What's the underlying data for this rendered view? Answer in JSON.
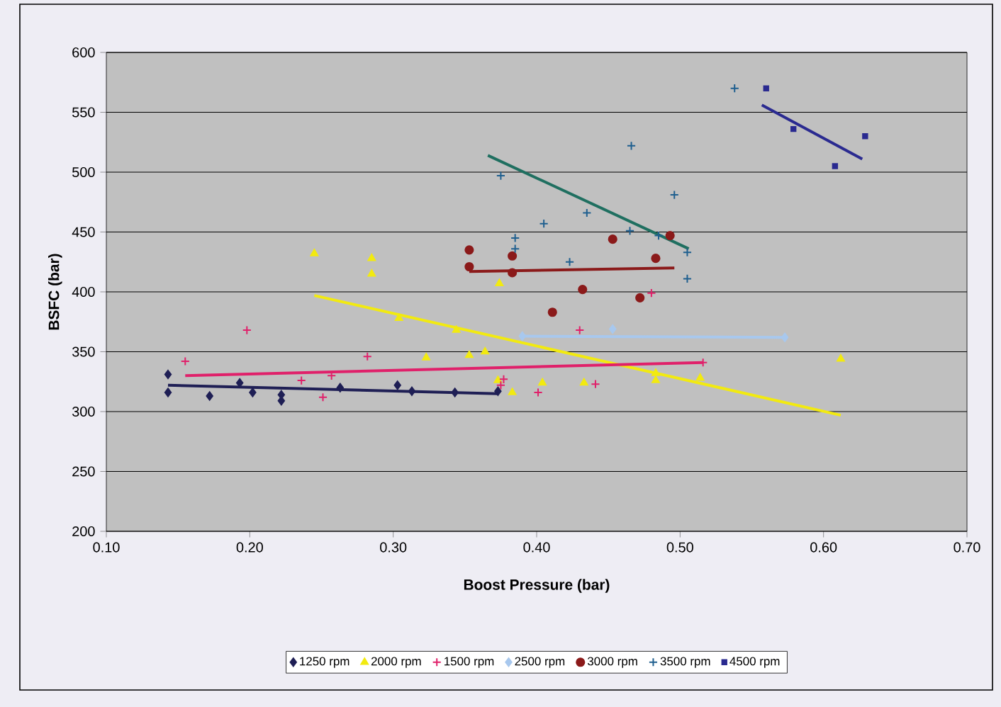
{
  "chart_data": {
    "type": "scatter",
    "xlabel": "Boost Pressure (bar)",
    "ylabel": "BSFC (bar)",
    "xlim": [
      0.1,
      0.7
    ],
    "ylim": [
      200,
      600
    ],
    "xticks": [
      {
        "value": 0.1,
        "label": "0.10"
      },
      {
        "value": 0.2,
        "label": "0.20"
      },
      {
        "value": 0.3,
        "label": "0.30"
      },
      {
        "value": 0.4,
        "label": "0.40"
      },
      {
        "value": 0.5,
        "label": "0.50"
      },
      {
        "value": 0.6,
        "label": "0.60"
      },
      {
        "value": 0.7,
        "label": "0.70"
      }
    ],
    "yticks": [
      200,
      250,
      300,
      350,
      400,
      450,
      500,
      550,
      600
    ],
    "grid": "y",
    "legend": "bottom",
    "series": [
      {
        "name": "1250 rpm",
        "color": "#1f1f55",
        "marker": "diamond",
        "x": [
          0.143,
          0.143,
          0.172,
          0.193,
          0.202,
          0.222,
          0.222,
          0.263,
          0.303,
          0.313,
          0.343,
          0.373
        ],
        "values": [
          331,
          316,
          313,
          324,
          316,
          314,
          309,
          320,
          322,
          317,
          316,
          317
        ]
      },
      {
        "name": "2000 rpm",
        "color": "#f2ea10",
        "marker": "triangle",
        "x": [
          0.245,
          0.285,
          0.285,
          0.304,
          0.323,
          0.344,
          0.353,
          0.364,
          0.373,
          0.374,
          0.383,
          0.404,
          0.433,
          0.483,
          0.483,
          0.514,
          0.612
        ],
        "values": [
          432,
          428,
          415,
          378,
          345,
          368,
          347,
          350,
          326,
          407,
          316,
          324,
          324,
          332,
          326,
          328,
          344
        ]
      },
      {
        "name": "1500 rpm",
        "color": "#e0206a",
        "marker": "cross",
        "x": [
          0.155,
          0.198,
          0.236,
          0.251,
          0.257,
          0.282,
          0.375,
          0.377,
          0.401,
          0.43,
          0.441,
          0.48,
          0.516
        ],
        "values": [
          342,
          368,
          326,
          312,
          330,
          346,
          322,
          327,
          316,
          368,
          323,
          399,
          341
        ]
      },
      {
        "name": "2500 rpm",
        "color": "#a8c8ee",
        "marker": "diamond",
        "x": [
          0.39,
          0.453,
          0.573
        ],
        "values": [
          363,
          369,
          362
        ]
      },
      {
        "name": "3000 rpm",
        "color": "#8b1a1a",
        "marker": "circle",
        "x": [
          0.353,
          0.353,
          0.383,
          0.383,
          0.411,
          0.432,
          0.453,
          0.472,
          0.483,
          0.493
        ],
        "values": [
          435,
          421,
          430,
          416,
          383,
          402,
          444,
          395,
          428,
          447
        ]
      },
      {
        "name": "3500 rpm",
        "color": "#1f5f8f",
        "marker": "cross",
        "x": [
          0.375,
          0.385,
          0.385,
          0.405,
          0.423,
          0.435,
          0.465,
          0.466,
          0.485,
          0.496,
          0.505,
          0.505,
          0.538
        ],
        "values": [
          497,
          445,
          436,
          457,
          425,
          466,
          451,
          522,
          447,
          481,
          433,
          411,
          570
        ]
      },
      {
        "name": "4500 rpm",
        "color": "#2a2a90",
        "marker": "square",
        "x": [
          0.56,
          0.579,
          0.608,
          0.629
        ],
        "values": [
          570,
          536,
          505,
          530
        ]
      },
      {
        "type": "line",
        "color": "#1f1f55",
        "x": [
          0.143,
          0.373
        ],
        "values": [
          322,
          315
        ]
      },
      {
        "type": "line",
        "color": "#f2ea10",
        "x": [
          0.245,
          0.612
        ],
        "values": [
          397,
          297
        ]
      },
      {
        "type": "line",
        "color": "#e0206a",
        "x": [
          0.155,
          0.516
        ],
        "values": [
          330,
          341
        ]
      },
      {
        "type": "line",
        "color": "#a8c8ee",
        "x": [
          0.39,
          0.573
        ],
        "values": [
          363,
          362
        ]
      },
      {
        "type": "line",
        "color": "#8b1a1a",
        "x": [
          0.353,
          0.496
        ],
        "values": [
          417,
          420
        ]
      },
      {
        "type": "line",
        "color": "#1f6f60",
        "x": [
          0.366,
          0.506
        ],
        "values": [
          514,
          436
        ]
      },
      {
        "type": "line",
        "color": "#2a2a90",
        "x": [
          0.557,
          0.627
        ],
        "values": [
          556,
          511
        ]
      }
    ]
  }
}
